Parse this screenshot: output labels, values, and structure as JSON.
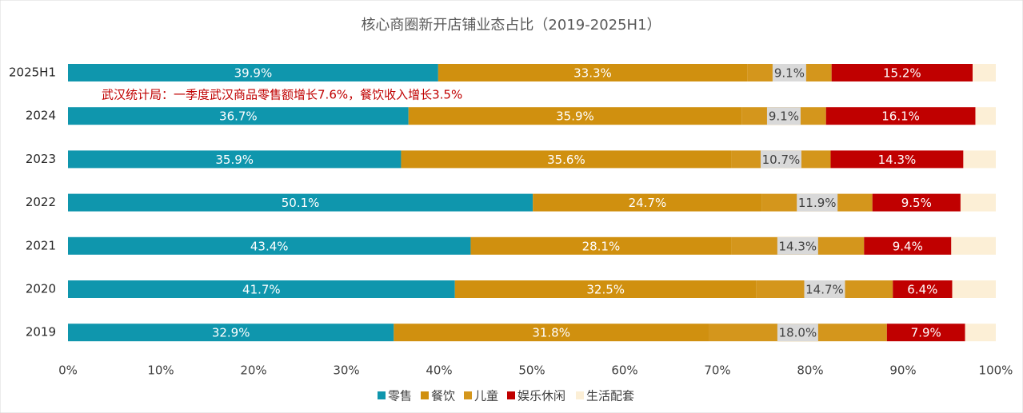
{
  "chart_data": {
    "type": "bar",
    "orientation": "horizontal",
    "stacking": "percent",
    "title": "核心商圈新开店铺业态占比（2019-2025H1）",
    "annotation": "武汉统计局：一季度武汉商品零售额增长7.6%，餐饮收入增长3.5%",
    "categories": [
      "2025H1",
      "2024",
      "2023",
      "2022",
      "2021",
      "2020",
      "2019"
    ],
    "series": [
      {
        "name": "零售",
        "color": "#0f96ad",
        "values": [
          39.9,
          36.7,
          35.9,
          50.1,
          43.4,
          41.7,
          32.9
        ],
        "value_labels": [
          "39.9%",
          "36.7%",
          "35.9%",
          "50.1%",
          "43.4%",
          "41.7%",
          "32.9%"
        ]
      },
      {
        "name": "餐饮",
        "color": "#d0900f",
        "values": [
          33.3,
          35.9,
          35.6,
          24.7,
          28.1,
          32.5,
          31.8
        ],
        "value_labels": [
          "33.3%",
          "35.9%",
          "35.6%",
          "24.7%",
          "28.1%",
          "32.5%",
          "31.8%"
        ]
      },
      {
        "name": "儿童",
        "color": "#d4961c",
        "values": [
          9.1,
          9.1,
          10.7,
          11.9,
          14.3,
          14.7,
          18.0
        ],
        "value_labels": [
          "9.1%",
          "9.1%",
          "10.7%",
          "11.9%",
          "14.3%",
          "14.7%",
          "18.0%"
        ]
      },
      {
        "name": "娱乐休闲",
        "color": "#c00000",
        "values": [
          15.2,
          16.1,
          14.3,
          9.5,
          9.4,
          6.4,
          7.9
        ],
        "value_labels": [
          "15.2%",
          "16.1%",
          "14.3%",
          "9.5%",
          "9.4%",
          "6.4%",
          "7.9%"
        ]
      },
      {
        "name": "生活配套",
        "color": "#fcefd6",
        "values": [
          2.5,
          2.2,
          3.5,
          3.8,
          4.8,
          4.7,
          3.1
        ]
      }
    ],
    "xlim": [
      0,
      100
    ],
    "xticks": [
      {
        "value": 0,
        "label": "0%"
      },
      {
        "value": 10,
        "label": "10%"
      },
      {
        "value": 20,
        "label": "20%"
      },
      {
        "value": 30,
        "label": "30%"
      },
      {
        "value": 40,
        "label": "40%"
      },
      {
        "value": 50,
        "label": "50%"
      },
      {
        "value": 60,
        "label": "60%"
      },
      {
        "value": 70,
        "label": "70%"
      },
      {
        "value": 80,
        "label": "80%"
      },
      {
        "value": 90,
        "label": "90%"
      },
      {
        "value": 100,
        "label": "100%"
      }
    ],
    "legend": "bottom"
  }
}
